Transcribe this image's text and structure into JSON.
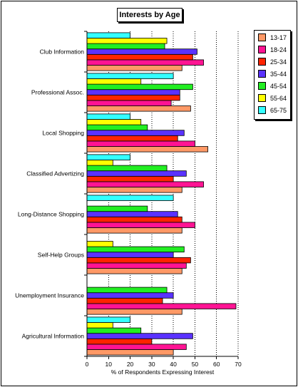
{
  "chart_data": {
    "type": "bar",
    "orientation": "horizontal",
    "title": "Interests by Age",
    "xlabel": "% of Respondents Expressing Interest",
    "ylabel": "",
    "xlim": [
      0,
      70
    ],
    "xticks": [
      "0",
      "10",
      "20",
      "30",
      "40",
      "50",
      "60",
      "70"
    ],
    "grid": "vertical dotted",
    "legend_position": "right",
    "categories": [
      "Club Information",
      "Professional Assoc.",
      "Local Shopping",
      "Classified Advertizing",
      "Long-Distance Shopping",
      "Self-Help Groups",
      "Unemployment Insurance",
      "Agricultural Information"
    ],
    "series": [
      {
        "name": "13-17",
        "color": "#ff9966",
        "values": [
          44,
          48,
          56,
          44,
          44,
          44,
          44,
          40
        ]
      },
      {
        "name": "18-24",
        "color": "#ff1493",
        "values": [
          54,
          39,
          50,
          54,
          50,
          46,
          69,
          46
        ]
      },
      {
        "name": "25-34",
        "color": "#ff2400",
        "values": [
          49,
          43,
          42,
          40,
          44,
          48,
          35,
          30
        ]
      },
      {
        "name": "35-44",
        "color": "#5a32ff",
        "values": [
          51,
          43,
          45,
          46,
          42,
          40,
          40,
          49
        ]
      },
      {
        "name": "45-54",
        "color": "#22ee22",
        "values": [
          36,
          49,
          28,
          37,
          28,
          45,
          37,
          25
        ]
      },
      {
        "name": "55-64",
        "color": "#ffff00",
        "values": [
          37,
          25,
          25,
          12,
          0,
          12,
          0,
          12
        ]
      },
      {
        "name": "65-75",
        "color": "#33ffff",
        "values": [
          20,
          40,
          20,
          20,
          40,
          0,
          0,
          20
        ]
      }
    ]
  }
}
